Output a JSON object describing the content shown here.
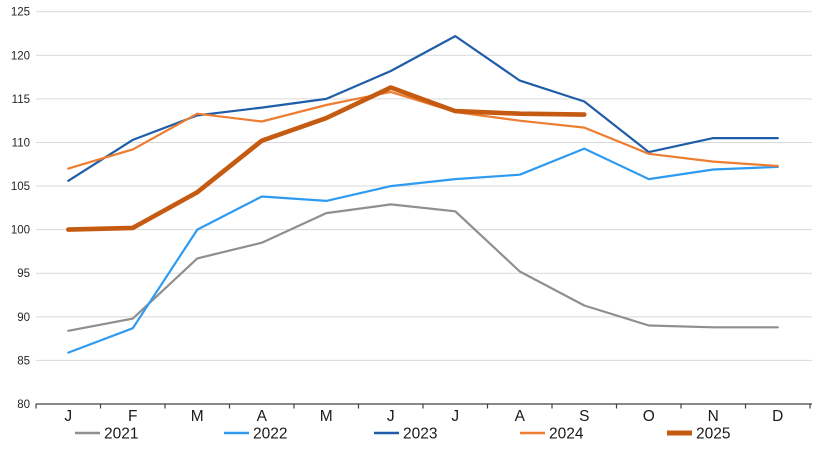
{
  "chart_data": {
    "type": "line",
    "title": "",
    "xlabel": "",
    "ylabel": "",
    "categories": [
      "J",
      "F",
      "M",
      "A",
      "M",
      "J",
      "J",
      "A",
      "S",
      "O",
      "N",
      "D"
    ],
    "series": [
      {
        "name": "2021",
        "color": "#8f8f8f",
        "width": 2.2,
        "values": [
          88.4,
          89.8,
          96.7,
          98.5,
          101.9,
          102.9,
          102.1,
          95.2,
          91.3,
          89.0,
          88.8,
          88.8
        ]
      },
      {
        "name": "2022",
        "color": "#2f9bf0",
        "width": 2.2,
        "values": [
          85.9,
          88.7,
          100.0,
          103.8,
          103.3,
          105.0,
          105.8,
          106.3,
          109.3,
          105.8,
          106.9,
          107.2
        ]
      },
      {
        "name": "2023",
        "color": "#1f5da8",
        "width": 2.2,
        "values": [
          105.6,
          110.3,
          113.1,
          114.0,
          115.0,
          118.2,
          122.2,
          117.1,
          114.7,
          108.9,
          110.5,
          110.5
        ]
      },
      {
        "name": "2024",
        "color": "#ed7d31",
        "width": 2.2,
        "values": [
          107.0,
          109.2,
          113.3,
          112.4,
          114.3,
          115.8,
          113.5,
          112.5,
          111.7,
          108.7,
          107.8,
          107.3
        ]
      },
      {
        "name": "2025",
        "color": "#c55a11",
        "width": 4.6,
        "values": [
          100.0,
          100.2,
          104.3,
          110.2,
          112.8,
          116.3,
          113.6,
          113.3,
          113.2,
          null,
          null,
          null
        ]
      }
    ],
    "ylim": [
      80,
      125
    ],
    "y_ticks": [
      80,
      85,
      90,
      95,
      100,
      105,
      110,
      115,
      120,
      125
    ],
    "grid": true,
    "legend_position": "bottom",
    "legend_entries": [
      "2021",
      "2022",
      "2023",
      "2024",
      "2025"
    ]
  },
  "style": {
    "gridline_color": "#d9d9d9",
    "axis_color": "#404040",
    "tick_label_color": "#262626",
    "month_label_color": "#1a1a1a",
    "legend_text_color": "#1a1a1a",
    "background": "#ffffff"
  }
}
